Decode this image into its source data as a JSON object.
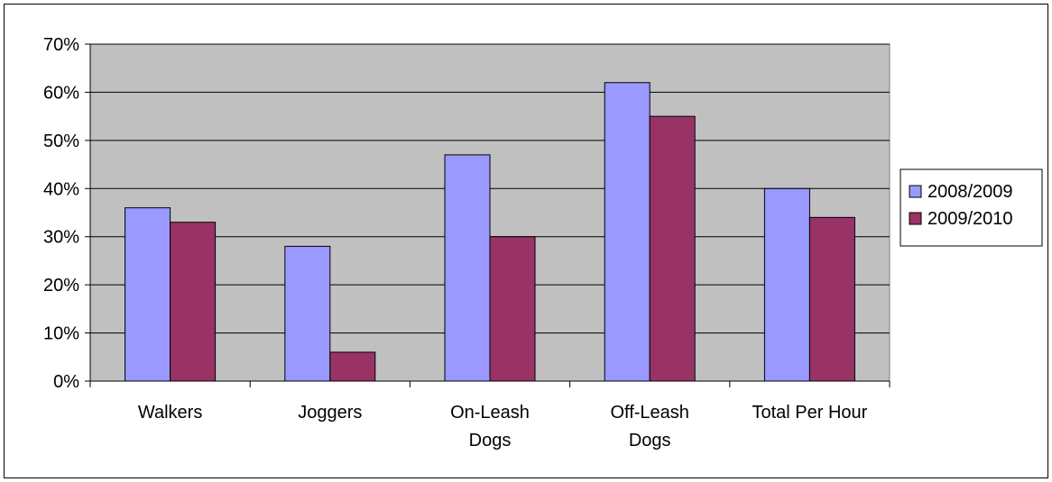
{
  "chart_data": {
    "type": "bar",
    "categories": [
      [
        "Walkers"
      ],
      [
        "Joggers"
      ],
      [
        "On-Leash",
        "Dogs"
      ],
      [
        "Off-Leash",
        "Dogs"
      ],
      [
        "Total Per Hour"
      ]
    ],
    "series": [
      {
        "name": "2008/2009",
        "values": [
          36,
          28,
          47,
          62,
          40
        ],
        "color": "#9999ff"
      },
      {
        "name": "2009/2010",
        "values": [
          33,
          6,
          30,
          55,
          34
        ],
        "color": "#993366"
      }
    ],
    "ylim": [
      0,
      70
    ],
    "yticks": [
      0,
      10,
      20,
      30,
      40,
      50,
      60,
      70
    ],
    "ytick_labels": [
      "0%",
      "10%",
      "20%",
      "30%",
      "40%",
      "50%",
      "60%",
      "70%"
    ],
    "title": "",
    "xlabel": "",
    "ylabel": "",
    "grid": true,
    "plot_background": "#c0c0c0",
    "legend_position": "right"
  }
}
